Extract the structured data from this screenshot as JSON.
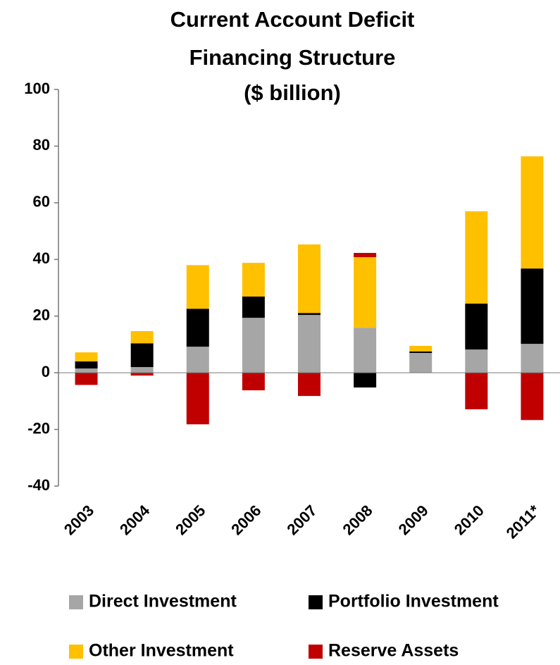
{
  "chart_data": {
    "type": "bar",
    "stacked": true,
    "title": [
      "Current Account Deficit",
      "Financing Structure",
      "($ billion)"
    ],
    "categories": [
      "2003",
      "2004",
      "2005",
      "2006",
      "2007",
      "2008",
      "2009",
      "2010",
      "2011*"
    ],
    "series": [
      {
        "name": "Direct Investment",
        "color": "#a6a6a6",
        "values": [
          1.5,
          2,
          9.2,
          19.4,
          20.4,
          15.9,
          7,
          8.2,
          10.2
        ]
      },
      {
        "name": "Portfolio Investment",
        "color": "#000000",
        "values": [
          2.5,
          8.4,
          13.4,
          7.5,
          0.7,
          -5.2,
          0.5,
          16.2,
          26.6
        ]
      },
      {
        "name": "Other Investment",
        "color": "#ffc000",
        "values": [
          3.2,
          4.3,
          15.4,
          11.9,
          24.2,
          24.9,
          2,
          32.6,
          39.6
        ]
      },
      {
        "name": "Reserve Assets",
        "color": "#c00000",
        "values": [
          -4.3,
          -1,
          -18.2,
          -6.2,
          -8.2,
          1.5,
          0,
          -12.9,
          -16.7
        ]
      }
    ],
    "ylim": [
      -40,
      100
    ],
    "yticks": [
      -40,
      -20,
      0,
      20,
      40,
      60,
      80,
      100
    ],
    "grid": false,
    "legend": "bottom"
  }
}
